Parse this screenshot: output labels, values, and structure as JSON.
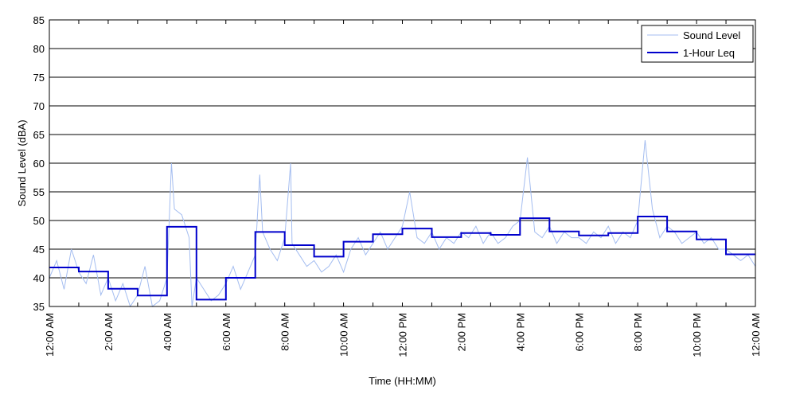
{
  "chart_data": {
    "type": "line",
    "title": "",
    "xlabel": "Time (HH:MM)",
    "ylabel": "Sound Level (dBA)",
    "ylim": [
      35,
      85
    ],
    "yticks": [
      35,
      40,
      45,
      50,
      55,
      60,
      65,
      70,
      75,
      80,
      85
    ],
    "xlim_hours": [
      0,
      24
    ],
    "xtick_hours": [
      0,
      2,
      4,
      6,
      8,
      10,
      12,
      14,
      16,
      18,
      20,
      22,
      24
    ],
    "xtick_labels": [
      "12:00 AM",
      "2:00 AM",
      "4:00 AM",
      "6:00 AM",
      "8:00 AM",
      "10:00 AM",
      "12:00 PM",
      "2:00 PM",
      "4:00 PM",
      "6:00 PM",
      "8:00 PM",
      "10:00 PM",
      "12:00 AM"
    ],
    "grid": "horizontal",
    "legend_position": "top-right",
    "series": [
      {
        "name": "Sound Level",
        "color": "#a4bdf0",
        "style": "thin line",
        "x_hours": [
          0.0,
          0.25,
          0.5,
          0.75,
          1.0,
          1.25,
          1.5,
          1.75,
          2.0,
          2.25,
          2.5,
          2.75,
          3.0,
          3.25,
          3.5,
          3.75,
          4.0,
          4.15,
          4.25,
          4.5,
          4.75,
          4.85,
          5.0,
          5.25,
          5.5,
          5.75,
          6.0,
          6.25,
          6.5,
          6.75,
          7.0,
          7.15,
          7.25,
          7.5,
          7.75,
          8.0,
          8.2,
          8.25,
          8.5,
          8.75,
          9.0,
          9.25,
          9.5,
          9.75,
          10.0,
          10.25,
          10.5,
          10.75,
          11.0,
          11.25,
          11.5,
          11.75,
          12.0,
          12.25,
          12.5,
          12.75,
          13.0,
          13.25,
          13.5,
          13.75,
          14.0,
          14.25,
          14.5,
          14.75,
          15.0,
          15.25,
          15.5,
          15.75,
          16.0,
          16.25,
          16.5,
          16.75,
          17.0,
          17.25,
          17.5,
          17.75,
          18.0,
          18.25,
          18.5,
          18.75,
          19.0,
          19.25,
          19.5,
          19.75,
          20.0,
          20.25,
          20.5,
          20.75,
          21.0,
          21.25,
          21.5,
          21.75,
          22.0,
          22.25,
          22.5,
          22.75,
          23.0,
          23.25,
          23.5,
          23.75,
          24.0
        ],
        "values": [
          40,
          43,
          38,
          45,
          41,
          39,
          44,
          37,
          40,
          36,
          39,
          35,
          37,
          42,
          35,
          36,
          40,
          60,
          52,
          51,
          47,
          35,
          40,
          38,
          36,
          37,
          39,
          42,
          38,
          41,
          44,
          58,
          48,
          45,
          43,
          47,
          60,
          46,
          44,
          42,
          43,
          41,
          42,
          44,
          41,
          45,
          47,
          44,
          46,
          48,
          45,
          47,
          49,
          55,
          47,
          46,
          48,
          45,
          47,
          46,
          48,
          47,
          49,
          46,
          48,
          46,
          47,
          49,
          50,
          61,
          48,
          47,
          49,
          46,
          48,
          47,
          47,
          46,
          48,
          47,
          49,
          46,
          48,
          47,
          50,
          64,
          52,
          47,
          49,
          48,
          46,
          47,
          48,
          46,
          47,
          45,
          45,
          44,
          43,
          44,
          42
        ]
      },
      {
        "name": "1-Hour Leq",
        "color": "#0000cc",
        "style": "step",
        "hours": [
          0,
          1,
          2,
          3,
          4,
          5,
          6,
          7,
          8,
          9,
          10,
          11,
          12,
          13,
          14,
          15,
          16,
          17,
          18,
          19,
          20,
          21,
          22,
          23
        ],
        "values": [
          41.8,
          41.1,
          38.1,
          36.9,
          48.9,
          36.2,
          40.0,
          48.0,
          45.7,
          43.7,
          46.3,
          47.6,
          48.6,
          47.1,
          47.8,
          47.5,
          50.4,
          48.1,
          47.4,
          47.8,
          50.7,
          48.1,
          46.7,
          44.1
        ]
      }
    ]
  }
}
